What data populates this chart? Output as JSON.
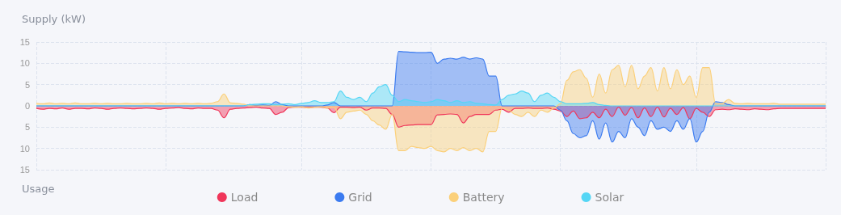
{
  "chart_data": {
    "type": "area",
    "ylabel": "Supply (kW)",
    "annotations": [
      "Usage"
    ],
    "categories": [
      null,
      null,
      null,
      null,
      null,
      null,
      null,
      null,
      null,
      null,
      null,
      null,
      null,
      null,
      null,
      null,
      null,
      null,
      null,
      null,
      null,
      null,
      null,
      null,
      null,
      null,
      null,
      null,
      null,
      null,
      null,
      null,
      null,
      null,
      null,
      null,
      null,
      null,
      null,
      null,
      null,
      null,
      null,
      null,
      null,
      null,
      null,
      null,
      null,
      null,
      null,
      null,
      null,
      null,
      null,
      null,
      null,
      null,
      null,
      null,
      null,
      null,
      null,
      null,
      null,
      null,
      null,
      null,
      null,
      null,
      null,
      null,
      null,
      null,
      null,
      null,
      null,
      null,
      null,
      null,
      null,
      null,
      null,
      null,
      null,
      null,
      null,
      null,
      null,
      null,
      null,
      null,
      null,
      null,
      null,
      null,
      null,
      null,
      null,
      null,
      null,
      null,
      null,
      null,
      null,
      null,
      null,
      null,
      null,
      null,
      null,
      null,
      null,
      null,
      null,
      null,
      null,
      null,
      null,
      null,
      null,
      null,
      null
    ],
    "series": [
      {
        "name": "Load",
        "color": "#f0365a",
        "values": [
          -0.6,
          -0.8,
          -0.6,
          -0.7,
          -0.5,
          -0.8,
          -0.6,
          -0.6,
          -0.7,
          -0.5,
          -0.6,
          -0.8,
          -0.6,
          -0.5,
          -0.6,
          -0.7,
          -0.6,
          -0.5,
          -0.6,
          -0.8,
          -0.6,
          -0.5,
          -0.4,
          -0.6,
          -0.7,
          -0.5,
          -0.6,
          -0.6,
          -1.0,
          -2.8,
          -0.8,
          -0.6,
          -0.5,
          -0.4,
          -0.3,
          -0.5,
          -0.6,
          -2.0,
          -1.5,
          -0.4,
          -0.3,
          -0.3,
          -0.4,
          -0.3,
          -0.3,
          -0.5,
          -1.6,
          -0.3,
          -0.3,
          -0.4,
          -0.3,
          -1.0,
          -0.5,
          -0.5,
          -0.6,
          -2.0,
          -5.0,
          -4.6,
          -4.5,
          -4.4,
          -4.4,
          -4.4,
          -2.1,
          -2.0,
          -1.9,
          -2.0,
          -4.0,
          -2.5,
          -2.0,
          -2.0,
          -2.0,
          -1.0,
          -0.8,
          -1.5,
          -0.6,
          -0.6,
          -0.5,
          -0.6,
          -0.6,
          -0.5,
          -0.8,
          -1.2,
          -2.5,
          -1.2,
          -3.0,
          -2.8,
          -1.5,
          -2.8,
          -0.8,
          -2.5,
          -0.3,
          -2.2,
          -0.4,
          -2.8,
          -0.5,
          -2.5,
          -0.3,
          -2.6,
          -0.6,
          -2.0,
          -0.4,
          -3.0,
          -0.6,
          -1.5,
          -2.5,
          -0.9,
          -0.8,
          -0.9,
          -0.7,
          -0.8,
          -0.9,
          -0.7,
          -0.8,
          -0.9,
          -0.7,
          -0.6,
          -0.6,
          -0.6,
          -0.6,
          -0.6,
          -0.6,
          -0.6,
          -0.6
        ]
      },
      {
        "name": "Grid",
        "color": "#3b7bf0",
        "values": [
          0,
          0,
          0,
          0,
          0,
          0,
          0,
          0,
          0,
          0,
          0,
          0,
          0,
          0,
          0,
          0,
          0,
          0,
          0,
          0,
          0,
          0,
          0,
          0,
          0,
          0,
          0,
          0,
          0,
          0,
          0,
          0,
          0,
          0.3,
          0.1,
          0.2,
          0.1,
          1.0,
          0.3,
          0,
          0,
          0,
          0,
          0,
          0,
          0.2,
          0.8,
          0,
          0,
          0,
          0,
          0,
          0,
          0,
          0,
          0,
          12.8,
          12.7,
          12.6,
          12.5,
          12.5,
          12.6,
          10.0,
          11.0,
          11.2,
          11.0,
          11.4,
          11.0,
          11.3,
          11.0,
          7.0,
          7.0,
          0,
          0,
          0,
          0,
          0,
          0,
          0,
          0,
          0,
          -1.0,
          -3.5,
          -6.5,
          -7.5,
          -7.0,
          -3.5,
          -7.8,
          -4.0,
          -8.5,
          -6.0,
          -7.5,
          -3.0,
          -5.0,
          -7.0,
          -3.5,
          -5.5,
          -5.0,
          -6.0,
          -3.5,
          -5.5,
          -3.0,
          -8.5,
          -6.0,
          -1.5,
          1.0,
          0.8,
          0.3,
          0,
          0,
          0,
          0,
          0,
          0,
          0,
          0,
          0,
          0,
          0,
          0,
          0,
          0,
          0
        ]
      },
      {
        "name": "Battery",
        "color": "#fbd07a",
        "values": [
          0.6,
          0.5,
          0.7,
          0.5,
          0.6,
          0.5,
          0.7,
          0.5,
          0.5,
          0.6,
          0.5,
          0.6,
          0.5,
          0.5,
          0.6,
          0.5,
          0.5,
          0.6,
          0.5,
          0.7,
          0.5,
          0.6,
          0.5,
          0.6,
          0.5,
          0.6,
          0.5,
          0.6,
          1.0,
          2.8,
          0.7,
          0.6,
          0.4,
          0,
          0,
          0,
          0,
          0,
          0,
          -0.2,
          -0.3,
          -0.2,
          -0.5,
          -0.3,
          -0.2,
          -0.5,
          -0.3,
          -3.0,
          -1.5,
          -1.2,
          -1.0,
          -2.0,
          -3.5,
          -4.5,
          -5.5,
          -2.0,
          -10.5,
          -10.5,
          -9.5,
          -9.8,
          -10.0,
          -9.5,
          -10.5,
          -10.8,
          -10.0,
          -10.5,
          -9.8,
          -10.5,
          -10.0,
          -10.8,
          -6.0,
          -6.0,
          -0.5,
          -1.0,
          -2.0,
          -2.5,
          -1.5,
          -2.5,
          -1.0,
          -1.5,
          -0.5,
          0.5,
          6.0,
          8.0,
          8.5,
          6.5,
          2.0,
          7.5,
          3.0,
          8.5,
          9.5,
          4.5,
          9.5,
          4.0,
          7.0,
          9.0,
          3.5,
          9.0,
          4.0,
          8.5,
          5.0,
          7.0,
          2.0,
          9.0,
          9.0,
          0.5,
          0.6,
          1.5,
          0.6,
          0.5,
          0.6,
          0.5,
          0.5,
          0.5,
          0.6,
          0.4,
          0.4,
          0.4,
          0.4,
          0.4,
          0.4,
          0.4,
          0.4
        ]
      },
      {
        "name": "Solar",
        "color": "#55d6f5",
        "values": [
          0,
          0,
          0,
          0,
          0,
          0,
          0,
          0,
          0,
          0,
          0,
          0,
          0,
          0,
          0,
          0,
          0,
          0,
          0,
          0,
          0,
          0,
          0,
          0,
          0,
          0,
          0,
          0,
          0,
          0,
          0,
          0,
          0,
          0.3,
          0.4,
          0.5,
          0.5,
          0.3,
          0.4,
          0.5,
          0.3,
          0.6,
          0.8,
          1.2,
          0.8,
          0.8,
          1.0,
          3.5,
          2.0,
          1.5,
          2.0,
          1.0,
          3.0,
          4.5,
          5.0,
          2.5,
          1.0,
          1.5,
          1.2,
          1.0,
          0.8,
          1.0,
          1.5,
          1.2,
          0.8,
          1.2,
          0.8,
          1.0,
          0.6,
          0.5,
          0.3,
          0.2,
          1.5,
          2.5,
          2.8,
          3.5,
          3.0,
          1.0,
          2.5,
          3.0,
          2.0,
          1.0,
          0.5,
          0.5,
          0.5,
          0.6,
          0.8,
          0.3,
          0.1,
          0,
          0,
          0,
          0,
          0,
          0,
          0,
          0,
          0,
          0,
          0,
          0,
          0,
          0,
          0,
          0,
          0,
          0,
          0,
          0,
          0,
          0,
          0,
          0,
          0,
          0,
          0,
          0,
          0,
          0,
          0,
          0,
          0,
          0
        ]
      }
    ],
    "ylim": [
      -15,
      15
    ],
    "yticks": [
      {
        "value": -15,
        "label": "15"
      },
      {
        "value": -10,
        "label": "10"
      },
      {
        "value": -5,
        "label": "5"
      },
      0,
      5,
      10,
      15
    ],
    "tick_labels": "y",
    "grid": true,
    "legend": "bottom",
    "line_style": "solid"
  }
}
